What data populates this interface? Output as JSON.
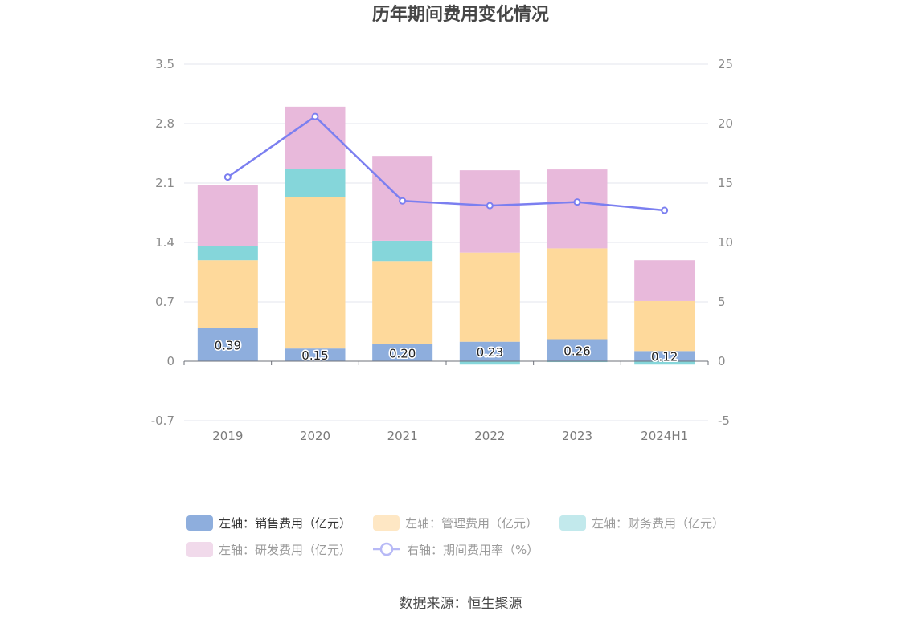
{
  "chart_data": {
    "type": "bar",
    "title": "历年期间费用变化情况",
    "categories": [
      "2019",
      "2020",
      "2021",
      "2022",
      "2023",
      "2024H1"
    ],
    "left_axis": {
      "ticks": [
        "3.5",
        "2.8",
        "2.1",
        "1.4",
        "0.7",
        "0",
        "-0.7"
      ],
      "ylim": [
        -0.7,
        3.5
      ]
    },
    "right_axis": {
      "ticks": [
        "25",
        "20",
        "15",
        "10",
        "5",
        "0",
        "-5"
      ],
      "ylim": [
        -5,
        25
      ]
    },
    "series": [
      {
        "name": "左轴：销售费用（亿元）",
        "type": "bar",
        "axis": "left",
        "color": "#8eaedd",
        "values": [
          0.39,
          0.15,
          0.2,
          0.23,
          0.26,
          0.12
        ],
        "labels": [
          "0.39",
          "0.15",
          "0.20",
          "0.23",
          "0.26",
          "0.12"
        ]
      },
      {
        "name": "左轴：管理费用（亿元）",
        "type": "bar",
        "axis": "left",
        "color": "#fed99b",
        "values": [
          0.8,
          1.78,
          0.98,
          1.05,
          1.07,
          0.59
        ]
      },
      {
        "name": "左轴：财务费用（亿元）",
        "type": "bar",
        "axis": "left",
        "color": "#85d6da",
        "values": [
          0.17,
          0.34,
          0.24,
          -0.04,
          -0.01,
          -0.04
        ]
      },
      {
        "name": "左轴：研发费用（亿元）",
        "type": "bar",
        "axis": "left",
        "color": "#e8b9db",
        "values": [
          0.72,
          0.73,
          1.0,
          0.97,
          0.93,
          0.48
        ]
      },
      {
        "name": "右轴：期间费用率（%）",
        "type": "line",
        "axis": "right",
        "color": "#7b7ff0",
        "values": [
          15.5,
          20.6,
          13.5,
          13.1,
          13.4,
          12.7
        ]
      }
    ],
    "grid": true,
    "legend_position": "bottom",
    "source": "数据来源：恒生聚源"
  }
}
